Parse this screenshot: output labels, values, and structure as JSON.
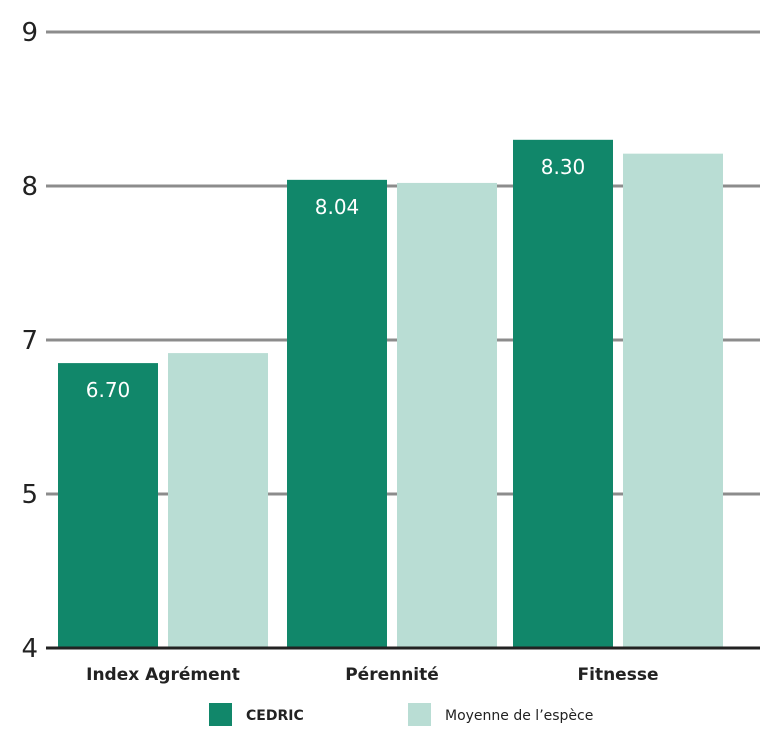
{
  "chart_data": {
    "type": "bar",
    "title": "",
    "xlabel": "",
    "ylabel": "",
    "categories": [
      "Index Agrément",
      "Pérennité",
      "Fitnesse"
    ],
    "series": [
      {
        "name": "CEDRIC",
        "values": [
          6.7,
          8.04,
          8.3
        ],
        "data_labels": [
          "6.70",
          "8.04",
          "8.30"
        ],
        "color": "#11876a"
      },
      {
        "name": "Moyenne de l’espèce",
        "values": [
          6.83,
          8.02,
          8.21
        ],
        "data_labels": [
          "",
          "",
          ""
        ],
        "color": "#b9ddd4"
      }
    ],
    "y_ticks": [
      {
        "label": "4",
        "value": 0
      },
      {
        "label": "5",
        "value": 1
      },
      {
        "label": "7",
        "value": 2
      },
      {
        "label": "8",
        "value": 3
      },
      {
        "label": "9",
        "value": 4
      }
    ],
    "ylim": [
      4,
      9
    ],
    "grid": true,
    "legend_position": "bottom-center",
    "colors": {
      "grid": "#8c8c8c",
      "axis": "#222222",
      "text": "#222222"
    }
  }
}
